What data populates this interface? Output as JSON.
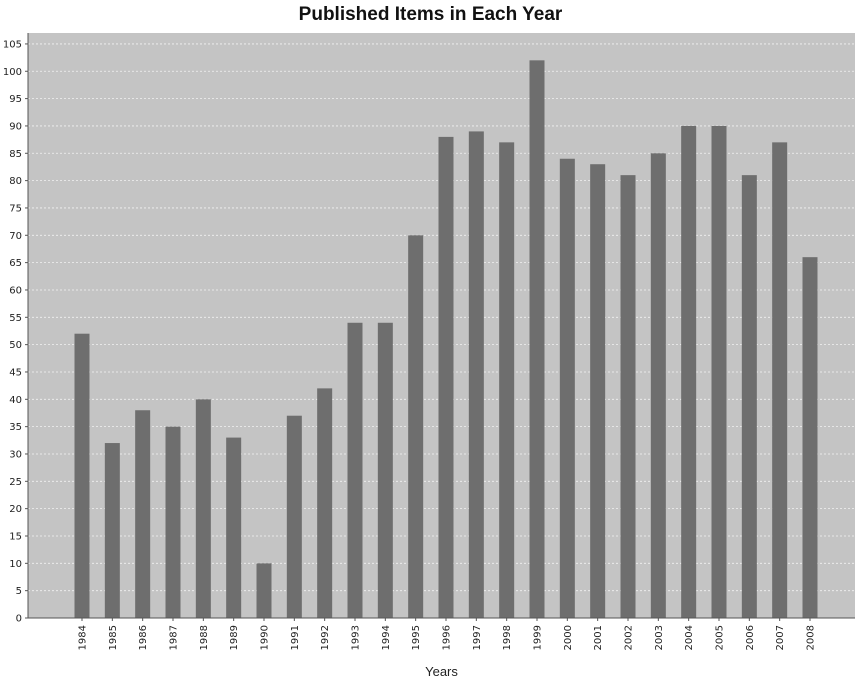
{
  "chart_data": {
    "type": "bar",
    "title": "Published Items in Each Year",
    "xlabel": "Years",
    "ylabel": "",
    "categories": [
      "1984",
      "1985",
      "1986",
      "1987",
      "1988",
      "1989",
      "1990",
      "1991",
      "1992",
      "1993",
      "1994",
      "1995",
      "1996",
      "1997",
      "1998",
      "1999",
      "2000",
      "2001",
      "2002",
      "2003",
      "2004",
      "2005",
      "2006",
      "2007",
      "2008"
    ],
    "values": [
      52,
      32,
      38,
      35,
      40,
      33,
      10,
      37,
      42,
      54,
      54,
      70,
      88,
      89,
      87,
      102,
      84,
      83,
      81,
      85,
      90,
      90,
      81,
      87,
      66
    ],
    "ylim": [
      0,
      107
    ],
    "yticks": [
      0,
      5,
      10,
      15,
      20,
      25,
      30,
      35,
      40,
      45,
      50,
      55,
      60,
      65,
      70,
      75,
      80,
      85,
      90,
      95,
      100,
      105
    ],
    "grid": true,
    "colors": {
      "plot_background": "#c4c4c4",
      "bar": "#6e6e6e",
      "gridline": "#f2f2f2"
    }
  }
}
